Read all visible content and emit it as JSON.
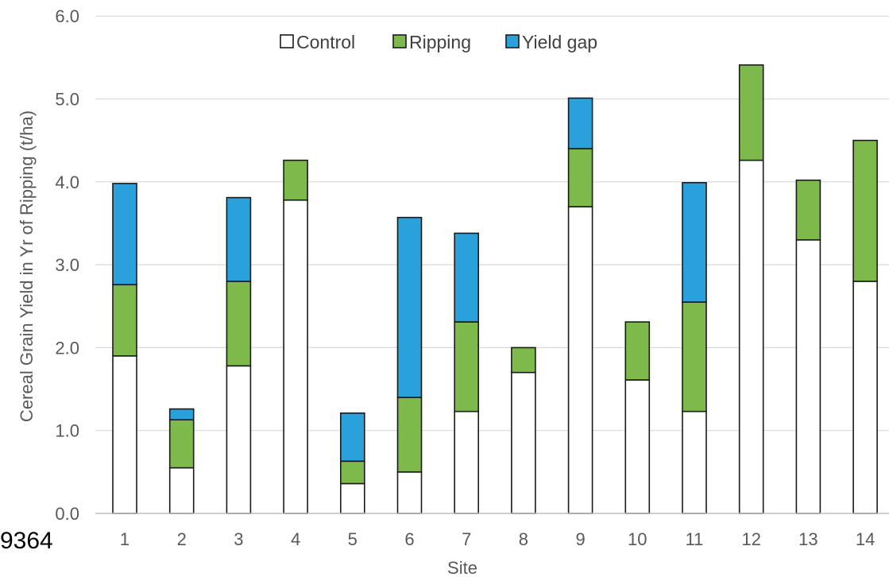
{
  "chart_data": {
    "type": "bar",
    "stacked": true,
    "categories": [
      "1",
      "2",
      "3",
      "4",
      "5",
      "6",
      "7",
      "8",
      "9",
      "10",
      "11",
      "12",
      "13",
      "14"
    ],
    "series": [
      {
        "name": "Control",
        "values": [
          1.9,
          0.55,
          1.78,
          3.78,
          0.36,
          0.5,
          1.23,
          1.7,
          3.7,
          1.61,
          1.23,
          4.26,
          3.3,
          2.8
        ]
      },
      {
        "name": "Ripping",
        "values": [
          0.86,
          0.58,
          1.02,
          0.48,
          0.27,
          0.9,
          1.08,
          0.3,
          0.7,
          0.7,
          1.32,
          1.15,
          0.72,
          1.7
        ]
      },
      {
        "name": "Yield gap",
        "values": [
          1.22,
          0.13,
          1.01,
          0.0,
          0.58,
          2.17,
          1.07,
          0.0,
          0.61,
          0.0,
          1.44,
          0.0,
          0.0,
          0.0
        ]
      }
    ],
    "xlabel": "Site",
    "ylabel": "Cereal Grain Yield  in Yr of Ripping (t/ha)",
    "ylim": [
      0,
      6
    ],
    "yticks": [
      "0.0",
      "1.0",
      "2.0",
      "3.0",
      "4.0",
      "5.0",
      "6.0"
    ],
    "grid": "horizontal",
    "legend": "top-center",
    "colors": {
      "Control": "#ffffff",
      "Ripping": "#7dba4b",
      "Yield gap": "#2aa1da"
    }
  },
  "stray_text": "9364"
}
